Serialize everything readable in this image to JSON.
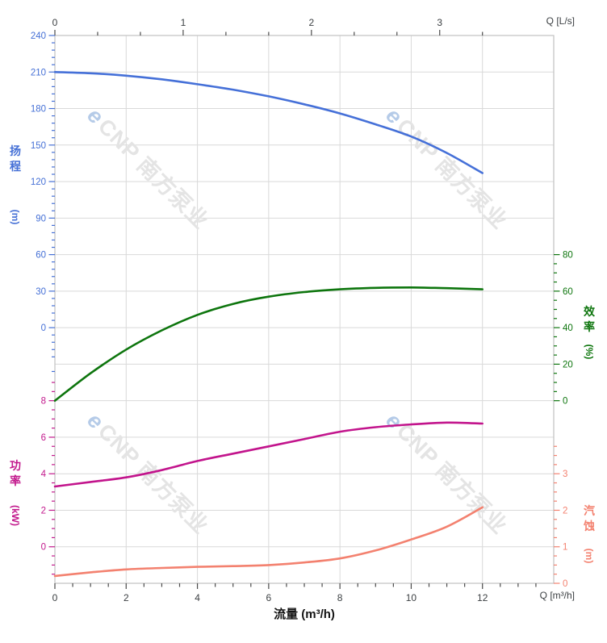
{
  "watermark": {
    "logo_char": "e",
    "brand_text": "CNP 南方泵业"
  },
  "top_axis": {
    "unit_label": "Q [L/s]",
    "ticks": [
      "0",
      "1",
      "2",
      "3"
    ],
    "color": "#3c4043"
  },
  "bottom_axis": {
    "unit_label": "Q [m³/h]",
    "title": "流量 (m³/h)",
    "ticks": [
      "0",
      "2",
      "4",
      "6",
      "8",
      "10",
      "12"
    ],
    "color": "#3c4043"
  },
  "left_axis_head": {
    "title": "扬程",
    "unit": "(m)",
    "ticks": [
      "240",
      "210",
      "180",
      "150",
      "120",
      "90",
      "60",
      "30",
      "0"
    ],
    "color": "#4570d6"
  },
  "left_axis_power": {
    "title": "功率",
    "unit": "(kW)",
    "ticks": [
      "8",
      "6",
      "4",
      "2",
      "0"
    ],
    "color": "#c2188c"
  },
  "right_axis_eff": {
    "title": "效率",
    "unit": "(%)",
    "ticks": [
      "80",
      "60",
      "40",
      "20",
      "0"
    ],
    "color": "#0d750d"
  },
  "right_axis_npsh": {
    "title": "汽蚀",
    "unit": "(m)",
    "ticks": [
      "3",
      "2",
      "1",
      "0"
    ],
    "color": "#f3816f"
  },
  "chart_data": {
    "type": "line",
    "title": "",
    "grid": true,
    "legend": "none",
    "x": [
      0,
      1,
      2,
      3,
      4,
      5,
      6,
      7,
      8,
      9,
      10,
      11,
      12
    ],
    "x_unit": "m³/h",
    "x_secondary_unit": "L/s",
    "axes": {
      "flow": {
        "label": "流量 (m³/h)",
        "min": 0,
        "max": 14,
        "major_tick": 2,
        "minor_tick": 0.5
      },
      "flow_ls": {
        "label": "Q [L/s]",
        "min": 0,
        "max": 3.89,
        "major_tick": 1,
        "minor_tick": 0.3333
      },
      "head": {
        "label": "扬程 (m)",
        "min": 0,
        "max": 240,
        "major_tick": 30,
        "minor_tick": 6
      },
      "efficiency": {
        "label": "效率 (%)",
        "min": 0,
        "max": 80,
        "major_tick": 20,
        "minor_tick": 5
      },
      "power": {
        "label": "功率 (kW)",
        "min": 0,
        "max": 8,
        "major_tick": 2,
        "minor_tick": 0.5
      },
      "npsh": {
        "label": "汽蚀 (m)",
        "min": 0,
        "max": 3,
        "major_tick": 1,
        "minor_tick": 0.25
      }
    },
    "series": [
      {
        "name": "扬程",
        "unit": "m",
        "axis": "head",
        "color": "#4570d8",
        "values": [
          210,
          209,
          207,
          204,
          200,
          195.5,
          190,
          183.5,
          176,
          167,
          157,
          143.5,
          127
        ]
      },
      {
        "name": "效率",
        "unit": "%",
        "axis": "efficiency",
        "color": "#0d750d",
        "values": [
          0,
          15,
          28,
          38.5,
          47,
          53,
          57,
          59.5,
          61,
          61.8,
          62,
          61.6,
          61
        ]
      },
      {
        "name": "功率",
        "unit": "kW",
        "axis": "power",
        "color": "#c2148c",
        "values": [
          3.3,
          3.55,
          3.8,
          4.2,
          4.7,
          5.1,
          5.5,
          5.9,
          6.3,
          6.55,
          6.7,
          6.8,
          6.75
        ]
      },
      {
        "name": "汽蚀",
        "unit": "m",
        "axis": "npsh",
        "color": "#f3816f",
        "values": [
          0.2,
          0.3,
          0.38,
          0.42,
          0.45,
          0.47,
          0.5,
          0.57,
          0.68,
          0.9,
          1.2,
          1.55,
          2.08
        ]
      }
    ]
  }
}
